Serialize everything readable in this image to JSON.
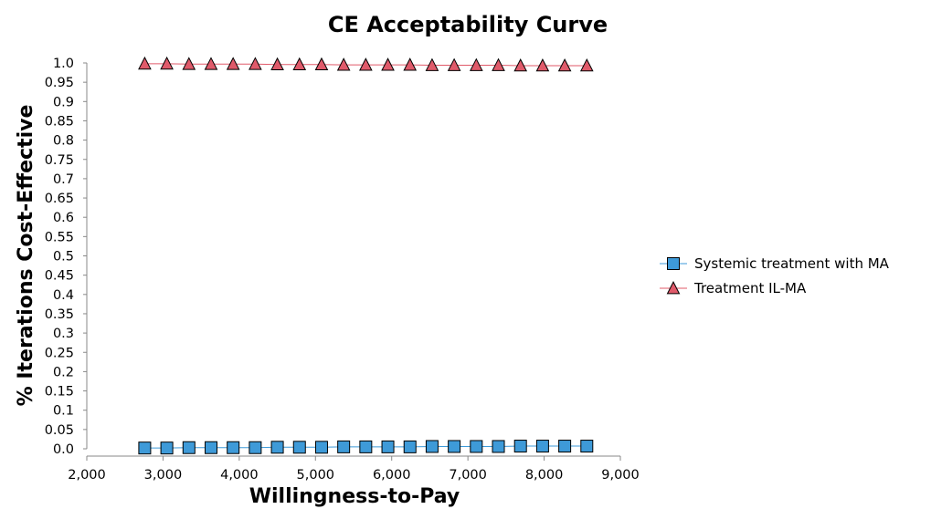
{
  "chart_data": {
    "type": "line",
    "title": "CE Acceptability Curve",
    "xlabel": "Willingness-to-Pay",
    "ylabel": "% Iterations Cost-Effective",
    "xlim": [
      2000,
      9000
    ],
    "ylim": [
      0,
      1
    ],
    "x_ticks": [
      2000,
      3000,
      4000,
      5000,
      6000,
      7000,
      8000,
      9000
    ],
    "x_tick_labels": [
      "2,000",
      "3,000",
      "4,000",
      "5,000",
      "6,000",
      "7,000",
      "8,000",
      "9,000"
    ],
    "y_ticks": [
      0,
      0.05,
      0.1,
      0.15,
      0.2,
      0.25,
      0.3,
      0.35,
      0.4,
      0.45,
      0.5,
      0.55,
      0.6,
      0.65,
      0.7,
      0.75,
      0.8,
      0.85,
      0.9,
      0.95,
      1
    ],
    "y_tick_labels": [
      "0.0",
      "0.05",
      "0.1",
      "0.15",
      "0.2",
      "0.25",
      "0.3",
      "0.35",
      "0.4",
      "0.45",
      "0.5",
      "0.55",
      "0.6",
      "0.65",
      "0.7",
      "0.75",
      "0.8",
      "0.85",
      "0.9",
      "0.95",
      "1.0"
    ],
    "grid": false,
    "legend_position": "right",
    "x": [
      2760,
      3050,
      3340,
      3630,
      3920,
      4210,
      4500,
      4790,
      5080,
      5370,
      5660,
      5950,
      6240,
      6530,
      6820,
      7110,
      7400,
      7690,
      7980,
      8270,
      8560
    ],
    "series": [
      {
        "name": "Systemic treatment with MA",
        "marker": "square",
        "color": "#3e9ad8",
        "values": [
          0.002,
          0.002,
          0.003,
          0.003,
          0.003,
          0.003,
          0.004,
          0.004,
          0.004,
          0.005,
          0.005,
          0.005,
          0.005,
          0.006,
          0.006,
          0.006,
          0.006,
          0.007,
          0.007,
          0.007,
          0.007
        ]
      },
      {
        "name": "Treatment IL-MA",
        "marker": "triangle",
        "color": "#e05a6a",
        "values": [
          0.998,
          0.998,
          0.997,
          0.997,
          0.997,
          0.997,
          0.996,
          0.996,
          0.996,
          0.995,
          0.995,
          0.995,
          0.995,
          0.994,
          0.994,
          0.994,
          0.994,
          0.993,
          0.993,
          0.993,
          0.993
        ]
      }
    ]
  }
}
